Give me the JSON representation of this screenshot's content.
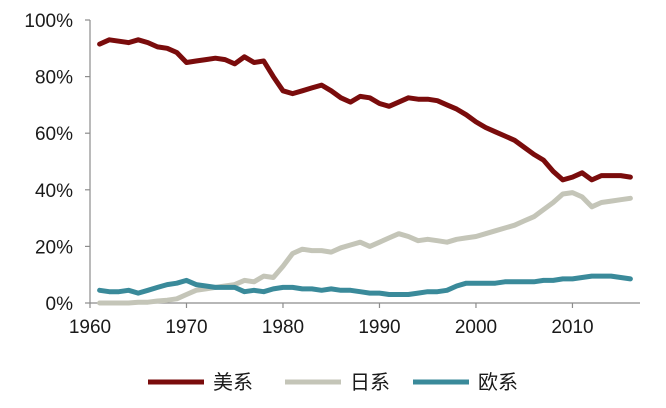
{
  "chart_data": {
    "type": "line",
    "title": "",
    "xlabel": "",
    "ylabel": "",
    "xlim": [
      1960,
      2017
    ],
    "ylim": [
      0,
      100
    ],
    "x_ticks": [
      1960,
      1970,
      1980,
      1990,
      2000,
      2010
    ],
    "x_tick_labels": [
      "1960",
      "1970",
      "1980",
      "1990",
      "2000",
      "2010"
    ],
    "y_ticks": [
      0,
      20,
      40,
      60,
      80,
      100
    ],
    "y_tick_labels": [
      "0%",
      "20%",
      "40%",
      "60%",
      "80%",
      "100%"
    ],
    "grid": false,
    "legend_position": "bottom",
    "series": [
      {
        "name": "美系",
        "color": "#7a0c0c",
        "x": [
          1961,
          1962,
          1963,
          1964,
          1965,
          1966,
          1967,
          1968,
          1969,
          1970,
          1971,
          1972,
          1973,
          1974,
          1975,
          1976,
          1977,
          1978,
          1979,
          1980,
          1981,
          1982,
          1983,
          1984,
          1985,
          1986,
          1987,
          1988,
          1989,
          1990,
          1991,
          1992,
          1993,
          1994,
          1995,
          1996,
          1997,
          1998,
          1999,
          2000,
          2001,
          2002,
          2003,
          2004,
          2005,
          2006,
          2007,
          2008,
          2009,
          2010,
          2011,
          2012,
          2013,
          2014,
          2015,
          2016
        ],
        "y": [
          91.5,
          93,
          92.5,
          92,
          93,
          92,
          90.5,
          90,
          88.5,
          85,
          85.5,
          86,
          86.5,
          86,
          84.5,
          87,
          85,
          85.5,
          80,
          75,
          74,
          75,
          76,
          77,
          75,
          72.5,
          71,
          73,
          72.5,
          70.5,
          69.5,
          71,
          72.5,
          72,
          72,
          71.5,
          70,
          68.5,
          66.5,
          64,
          62,
          60.5,
          59,
          57.5,
          55,
          52.5,
          50.5,
          46.5,
          43.5,
          44.5,
          46,
          43.5,
          45,
          45,
          45,
          44.5
        ]
      },
      {
        "name": "日系",
        "color": "#c4c5b8",
        "x": [
          1961,
          1962,
          1963,
          1964,
          1965,
          1966,
          1967,
          1968,
          1969,
          1970,
          1971,
          1972,
          1973,
          1974,
          1975,
          1976,
          1977,
          1978,
          1979,
          1980,
          1981,
          1982,
          1983,
          1984,
          1985,
          1986,
          1987,
          1988,
          1989,
          1990,
          1991,
          1992,
          1993,
          1994,
          1995,
          1996,
          1997,
          1998,
          1999,
          2000,
          2001,
          2002,
          2003,
          2004,
          2005,
          2006,
          2007,
          2008,
          2009,
          2010,
          2011,
          2012,
          2013,
          2014,
          2015,
          2016
        ],
        "y": [
          0,
          0,
          0,
          0,
          0.3,
          0.3,
          0.7,
          1,
          1.5,
          3,
          4.5,
          5,
          5.5,
          6,
          6.5,
          8,
          7.5,
          9.5,
          9,
          13,
          17.5,
          19,
          18.5,
          18.5,
          18,
          19.5,
          20.5,
          21.5,
          20,
          21.5,
          23,
          24.5,
          23.5,
          22,
          22.5,
          22,
          21.5,
          22.5,
          23,
          23.5,
          24.5,
          25.5,
          26.5,
          27.5,
          29,
          30.5,
          33,
          35.5,
          38.5,
          39,
          37.5,
          34,
          35.5,
          36,
          36.5,
          37
        ]
      },
      {
        "name": "欧系",
        "color": "#3a8a9a",
        "x": [
          1961,
          1962,
          1963,
          1964,
          1965,
          1966,
          1967,
          1968,
          1969,
          1970,
          1971,
          1972,
          1973,
          1974,
          1975,
          1976,
          1977,
          1978,
          1979,
          1980,
          1981,
          1982,
          1983,
          1984,
          1985,
          1986,
          1987,
          1988,
          1989,
          1990,
          1991,
          1992,
          1993,
          1994,
          1995,
          1996,
          1997,
          1998,
          1999,
          2000,
          2001,
          2002,
          2003,
          2004,
          2005,
          2006,
          2007,
          2008,
          2009,
          2010,
          2011,
          2012,
          2013,
          2014,
          2015,
          2016
        ],
        "y": [
          4.5,
          4,
          4,
          4.5,
          3.5,
          4.5,
          5.5,
          6.5,
          7,
          8,
          6.5,
          6,
          5.5,
          5.5,
          5.5,
          4,
          4.5,
          4,
          5,
          5.5,
          5.5,
          5,
          5,
          4.5,
          5,
          4.5,
          4.5,
          4,
          3.5,
          3.5,
          3,
          3,
          3,
          3.5,
          4,
          4,
          4.5,
          6,
          7,
          7,
          7,
          7,
          7.5,
          7.5,
          7.5,
          7.5,
          8,
          8,
          8.5,
          8.5,
          9,
          9.5,
          9.5,
          9.5,
          9,
          8.5
        ]
      }
    ]
  }
}
